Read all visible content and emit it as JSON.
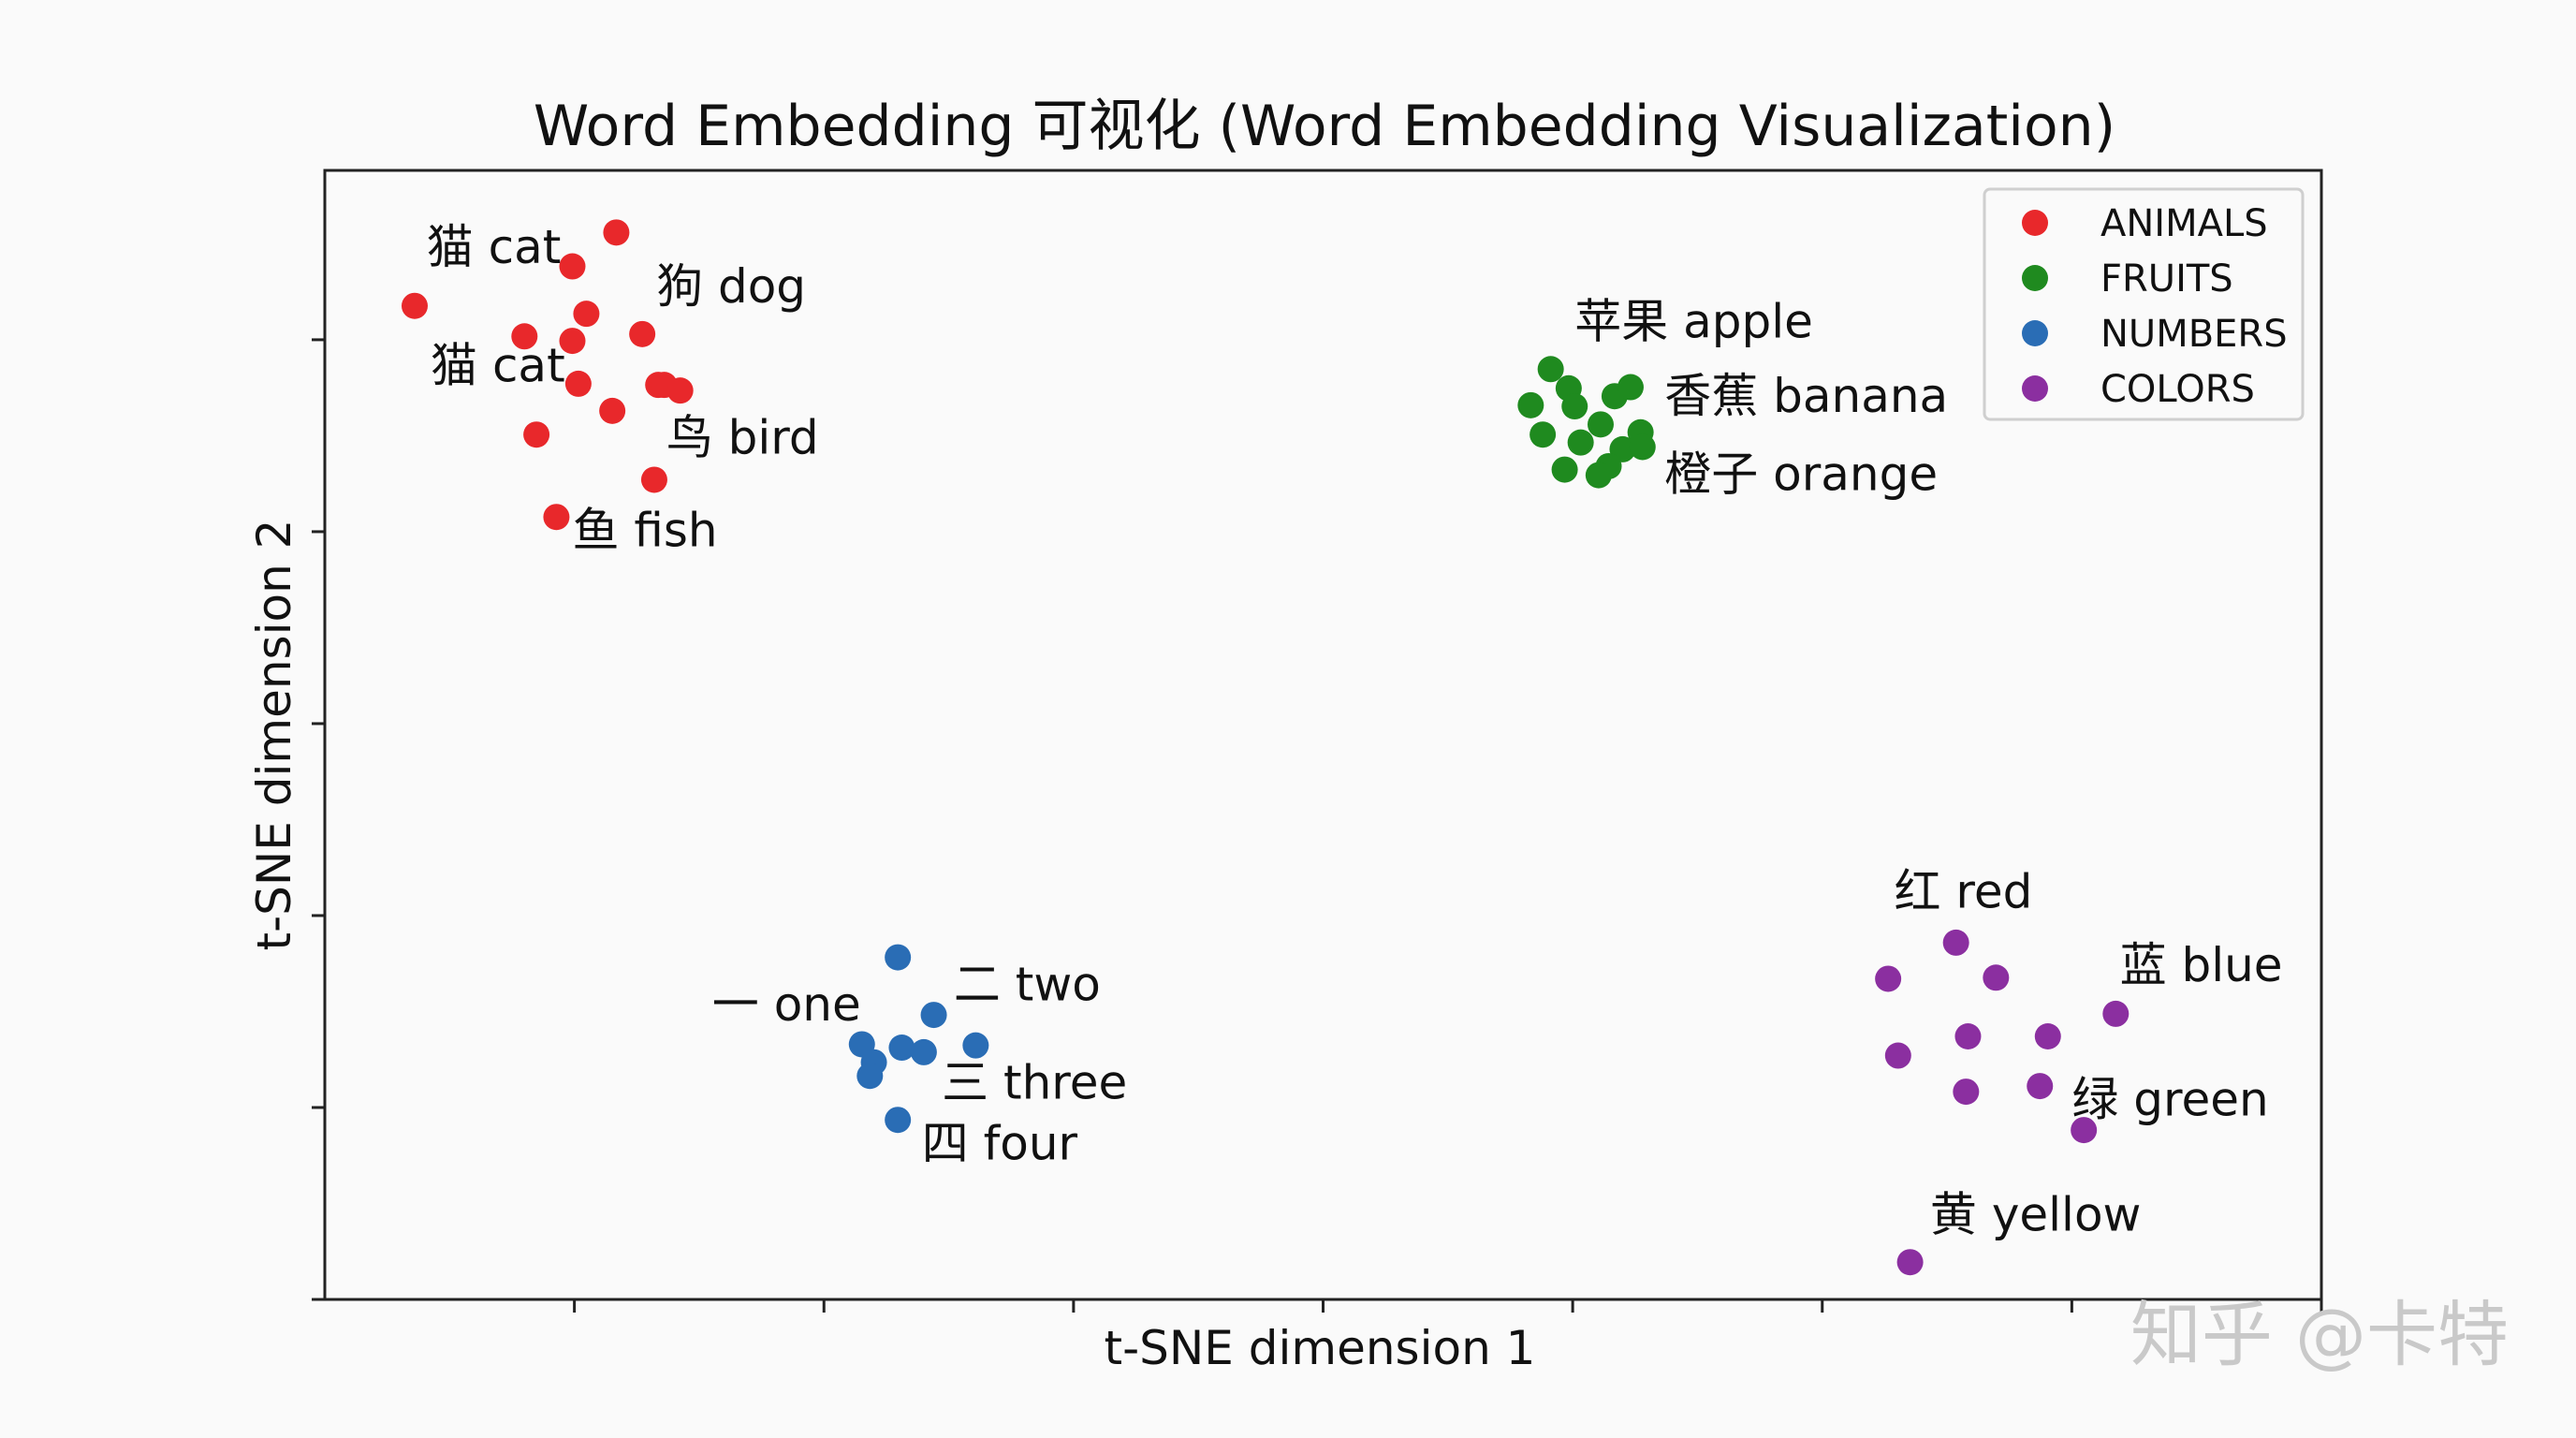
{
  "chart_data": {
    "type": "scatter",
    "title": "Word Embedding 可视化 (Word Embedding Visualization)",
    "xlabel": "t-SNE dimension 1",
    "ylabel": "t-SNE dimension 2",
    "xlim": [
      0,
      100
    ],
    "ylim": [
      0,
      100
    ],
    "grid": false,
    "legend_position": "top-right",
    "series": [
      {
        "name": "ANIMALS",
        "color": "#e8282b",
        "points": [
          [
            4.5,
            88
          ],
          [
            14.6,
            94.5
          ],
          [
            12.4,
            91.5
          ],
          [
            13.1,
            87.3
          ],
          [
            15.9,
            85.5
          ],
          [
            12.4,
            84.9
          ],
          [
            10.0,
            85.3
          ],
          [
            12.7,
            81.1
          ],
          [
            16.7,
            81.0
          ],
          [
            17.0,
            81.0
          ],
          [
            17.8,
            80.5
          ],
          [
            10.6,
            76.6
          ],
          [
            14.4,
            78.7
          ],
          [
            16.5,
            72.6
          ],
          [
            11.6,
            69.3
          ]
        ]
      },
      {
        "name": "FRUITS",
        "color": "#1f8a1f",
        "points": [
          [
            61.4,
            82.4
          ],
          [
            62.3,
            80.7
          ],
          [
            60.4,
            79.2
          ],
          [
            62.6,
            79.1
          ],
          [
            64.6,
            80.0
          ],
          [
            65.4,
            80.8
          ],
          [
            63.9,
            77.5
          ],
          [
            61.0,
            76.6
          ],
          [
            62.9,
            75.9
          ],
          [
            65.9,
            76.8
          ],
          [
            65.0,
            75.3
          ],
          [
            64.3,
            73.8
          ],
          [
            62.1,
            73.5
          ],
          [
            63.8,
            73.0
          ],
          [
            66.0,
            75.5
          ]
        ]
      },
      {
        "name": "NUMBERS",
        "color": "#2a6db5",
        "points": [
          [
            28.7,
            30.3
          ],
          [
            30.5,
            25.2
          ],
          [
            26.9,
            22.6
          ],
          [
            28.9,
            22.3
          ],
          [
            27.5,
            21.0
          ],
          [
            30.0,
            21.9
          ],
          [
            32.6,
            22.5
          ],
          [
            27.3,
            19.8
          ],
          [
            28.7,
            15.9
          ]
        ]
      },
      {
        "name": "COLORS",
        "color": "#8b2fa0",
        "points": [
          [
            78.3,
            28.4
          ],
          [
            81.7,
            31.6
          ],
          [
            83.7,
            28.5
          ],
          [
            78.8,
            21.6
          ],
          [
            82.3,
            23.3
          ],
          [
            82.2,
            18.4
          ],
          [
            85.9,
            18.9
          ],
          [
            88.1,
            15.0
          ],
          [
            86.3,
            23.3
          ],
          [
            89.7,
            25.3
          ],
          [
            79.4,
            3.3
          ]
        ]
      }
    ],
    "annotations": [
      {
        "text": "猫 cat",
        "x": 5.1,
        "y": 91.8
      },
      {
        "text": "狗 dog",
        "x": 16.6,
        "y": 88.3
      },
      {
        "text": "猫 cat",
        "x": 5.3,
        "y": 81.3
      },
      {
        "text": "鸟 bird",
        "x": 17.1,
        "y": 74.9
      },
      {
        "text": "鱼 fish",
        "x": 12.4,
        "y": 66.7
      },
      {
        "text": "苹果 apple",
        "x": 62.6,
        "y": 85.2
      },
      {
        "text": "香蕉 banana",
        "x": 67.1,
        "y": 78.6
      },
      {
        "text": "橙子 orange",
        "x": 67.1,
        "y": 71.7
      },
      {
        "text": "一 one",
        "x": 19.4,
        "y": 24.7
      },
      {
        "text": "二 two",
        "x": 31.5,
        "y": 26.5
      },
      {
        "text": "三 three",
        "x": 30.9,
        "y": 17.8
      },
      {
        "text": "四 four",
        "x": 29.9,
        "y": 12.4
      },
      {
        "text": "红 red",
        "x": 78.6,
        "y": 34.7
      },
      {
        "text": "蓝 blue",
        "x": 89.9,
        "y": 28.2
      },
      {
        "text": "绿 green",
        "x": 87.5,
        "y": 16.3
      },
      {
        "text": "黄 yellow",
        "x": 80.4,
        "y": 6.1
      }
    ]
  },
  "watermark": "知乎 @卡特"
}
